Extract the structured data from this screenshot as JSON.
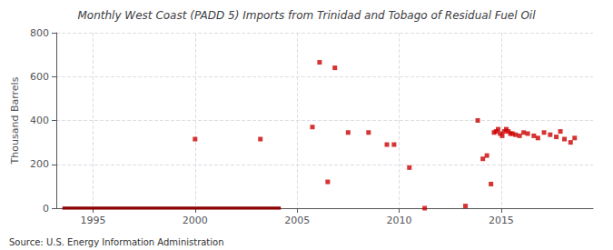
{
  "chart_data": {
    "type": "scatter",
    "title": "Monthly West Coast (PADD 5) Imports from Trinidad and Tobago of Residual Fuel Oil",
    "ylabel": "Thousand Barrels",
    "annotations": [
      "Source: U.S. Energy Information Administration"
    ],
    "xlim": [
      1993.2,
      2019.5
    ],
    "xticks": [
      1995,
      2000,
      2005,
      2010,
      2015
    ],
    "ylim": [
      0,
      800
    ],
    "yticks": [
      0,
      200,
      400,
      600,
      800
    ],
    "grid": true,
    "series": [
      {
        "type": "line",
        "line_style": "solid",
        "color": "#8b0000",
        "x": [
          1993.5,
          2004.2
        ],
        "values": [
          0,
          0
        ]
      },
      {
        "type": "scatter",
        "marker": "square",
        "color": "#cc0000",
        "x": [
          2000.0,
          2003.2,
          2005.75,
          2006.1,
          2006.5,
          2006.85,
          2007.5,
          2008.5,
          2009.4,
          2009.75,
          2010.5,
          2013.25,
          2013.85,
          2014.1,
          2014.3,
          2014.5,
          2014.65,
          2014.75,
          2014.85,
          2014.95,
          2015.05,
          2015.15,
          2015.25,
          2015.35,
          2015.45,
          2015.55,
          2015.7,
          2015.9,
          2016.1,
          2016.3,
          2016.6,
          2016.8,
          2017.1,
          2017.4,
          2017.7,
          2017.9,
          2018.1,
          2018.4,
          2018.6
        ],
        "values": [
          315,
          315,
          370,
          665,
          120,
          640,
          345,
          345,
          290,
          290,
          185,
          10,
          400,
          225,
          240,
          110,
          345,
          350,
          360,
          340,
          330,
          350,
          360,
          350,
          340,
          340,
          335,
          330,
          345,
          340,
          330,
          320,
          345,
          335,
          325,
          350,
          315,
          300,
          320
        ]
      },
      {
        "type": "scatter",
        "marker": "square",
        "color": "#cc0000",
        "x": [
          2011.25
        ],
        "values": [
          0
        ]
      }
    ]
  }
}
